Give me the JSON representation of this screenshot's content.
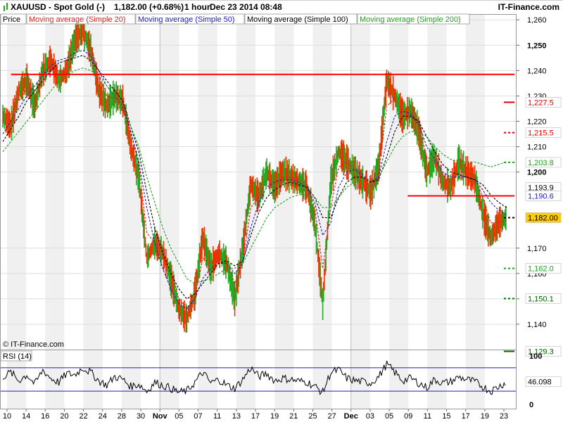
{
  "header": {
    "symbol": "XAUUSD - Spot Gold (-)",
    "price_change": "1,182.00 (+0.68%)",
    "timeframe": "1 hour",
    "datetime": "Dec 23 2014 08:48",
    "brand": "IT-Finance.com"
  },
  "legend": [
    {
      "label": "Price",
      "color": "#000000"
    },
    {
      "label": "Moving average (Simple 20)",
      "color": "#e02020"
    },
    {
      "label": "Moving average (Simple 50)",
      "color": "#2020c0"
    },
    {
      "label": "Moving average (Simple 100)",
      "color": "#000000"
    },
    {
      "label": "Moving average (Simple 200)",
      "color": "#20a020"
    }
  ],
  "copyright": "© IT-Finance.com",
  "rsi_label": "RSI (14)",
  "colors": {
    "up": "#22aa22",
    "down": "#ee3300",
    "resistance": "#ff0000",
    "last_price_bg": "#ffcc00"
  },
  "chart_data": [
    {
      "type": "line",
      "ylim": [
        1130,
        1262
      ],
      "y_ticks": [
        {
          "value": 1260,
          "label": "1,260",
          "bold": false
        },
        {
          "value": 1250,
          "label": "1,250",
          "bold": true
        },
        {
          "value": 1240,
          "label": "1,240",
          "bold": false
        },
        {
          "value": 1230,
          "label": "1,230",
          "bold": false
        },
        {
          "value": 1220,
          "label": "1,220",
          "bold": false
        },
        {
          "value": 1210,
          "label": "1,210",
          "bold": false
        },
        {
          "value": 1200,
          "label": "1,200",
          "bold": true
        },
        {
          "value": 1170,
          "label": "1,170",
          "bold": false
        },
        {
          "value": 1160,
          "label": "1,160",
          "bold": false
        },
        {
          "value": 1150,
          "label": "1,150",
          "bold": false
        },
        {
          "value": 1140,
          "label": "1,140",
          "bold": false
        }
      ],
      "x_ticks": [
        {
          "label": "10",
          "bold": false
        },
        {
          "label": "14",
          "bold": false
        },
        {
          "label": "16",
          "bold": false
        },
        {
          "label": "20",
          "bold": false
        },
        {
          "label": "22",
          "bold": false
        },
        {
          "label": "24",
          "bold": false
        },
        {
          "label": "28",
          "bold": false
        },
        {
          "label": "30",
          "bold": false
        },
        {
          "label": "Nov",
          "bold": true
        },
        {
          "label": "05",
          "bold": false
        },
        {
          "label": "07",
          "bold": false
        },
        {
          "label": "11",
          "bold": false
        },
        {
          "label": "13",
          "bold": false
        },
        {
          "label": "17",
          "bold": false
        },
        {
          "label": "19",
          "bold": false
        },
        {
          "label": "21",
          "bold": false
        },
        {
          "label": "25",
          "bold": false
        },
        {
          "label": "27",
          "bold": false
        },
        {
          "label": "Dec",
          "bold": true
        },
        {
          "label": "03",
          "bold": false
        },
        {
          "label": "05",
          "bold": false
        },
        {
          "label": "09",
          "bold": false
        },
        {
          "label": "11",
          "bold": false
        },
        {
          "label": "15",
          "bold": false
        },
        {
          "label": "17",
          "bold": false
        },
        {
          "label": "19",
          "bold": false
        },
        {
          "label": "23",
          "bold": false
        }
      ],
      "price_path": [
        1222,
        1218,
        1232,
        1236,
        1226,
        1240,
        1244,
        1236,
        1240,
        1252,
        1256,
        1248,
        1232,
        1226,
        1230,
        1228,
        1210,
        1198,
        1166,
        1172,
        1168,
        1158,
        1146,
        1142,
        1152,
        1174,
        1162,
        1168,
        1164,
        1150,
        1170,
        1195,
        1190,
        1200,
        1194,
        1200,
        1198,
        1196,
        1194,
        1180,
        1148,
        1196,
        1208,
        1204,
        1200,
        1196,
        1192,
        1202,
        1236,
        1230,
        1222,
        1224,
        1216,
        1200,
        1206,
        1196,
        1194,
        1204,
        1200,
        1197,
        1184,
        1174,
        1180,
        1182
      ],
      "series": [
        {
          "name": "Moving average (Simple 20)",
          "color": "#e02020",
          "values": [
            1225,
            1223,
            1228,
            1233,
            1232,
            1237,
            1241,
            1240,
            1239,
            1247,
            1252,
            1250,
            1238,
            1230,
            1229,
            1228,
            1216,
            1203,
            1176,
            1172,
            1169,
            1162,
            1150,
            1146,
            1150,
            1166,
            1164,
            1166,
            1165,
            1156,
            1164,
            1186,
            1190,
            1197,
            1196,
            1198,
            1198,
            1197,
            1195,
            1186,
            1162,
            1186,
            1202,
            1204,
            1201,
            1198,
            1194,
            1199,
            1226,
            1229,
            1224,
            1223,
            1218,
            1206,
            1204,
            1199,
            1196,
            1200,
            1200,
            1198,
            1190,
            1180,
            1180,
            1181
          ]
        },
        {
          "name": "Moving average (Simple 50)",
          "color": "#2020c0",
          "values": [
            1215,
            1220,
            1225,
            1230,
            1234,
            1238,
            1242,
            1244,
            1245,
            1247,
            1248,
            1246,
            1240,
            1234,
            1230,
            1226,
            1216,
            1204,
            1186,
            1172,
            1162,
            1154,
            1148,
            1146,
            1150,
            1158,
            1162,
            1164,
            1164,
            1160,
            1164,
            1178,
            1188,
            1194,
            1196,
            1197,
            1197,
            1196,
            1194,
            1188,
            1175,
            1180,
            1194,
            1200,
            1201,
            1199,
            1196,
            1198,
            1212,
            1222,
            1224,
            1223,
            1219,
            1210,
            1205,
            1200,
            1198,
            1198,
            1198,
            1197,
            1193,
            1188,
            1185,
            1183
          ]
        },
        {
          "name": "Moving average (Simple 100)",
          "color": "#000000",
          "values": [
            1212,
            1217,
            1222,
            1228,
            1232,
            1236,
            1240,
            1243,
            1244,
            1245,
            1246,
            1244,
            1240,
            1236,
            1232,
            1228,
            1218,
            1208,
            1192,
            1178,
            1168,
            1160,
            1154,
            1150,
            1152,
            1156,
            1160,
            1164,
            1165,
            1163,
            1165,
            1175,
            1184,
            1190,
            1193,
            1195,
            1196,
            1195,
            1194,
            1190,
            1182,
            1182,
            1190,
            1196,
            1198,
            1198,
            1196,
            1197,
            1206,
            1216,
            1222,
            1222,
            1220,
            1214,
            1208,
            1203,
            1200,
            1199,
            1198,
            1197,
            1195,
            1191,
            1188,
            1186
          ]
        },
        {
          "name": "Moving average (Simple 200)",
          "color": "#20a020",
          "values": [
            1208,
            1212,
            1216,
            1220,
            1224,
            1228,
            1232,
            1236,
            1238,
            1240,
            1241,
            1240,
            1238,
            1234,
            1230,
            1226,
            1218,
            1210,
            1198,
            1188,
            1178,
            1170,
            1164,
            1158,
            1156,
            1157,
            1158,
            1160,
            1162,
            1162,
            1164,
            1170,
            1176,
            1182,
            1186,
            1188,
            1190,
            1191,
            1191,
            1190,
            1186,
            1186,
            1190,
            1194,
            1196,
            1197,
            1197,
            1198,
            1204,
            1210,
            1214,
            1216,
            1216,
            1214,
            1210,
            1207,
            1205,
            1204,
            1204,
            1204,
            1203,
            1202,
            1203,
            1204
          ]
        }
      ],
      "horizontal_lines": [
        {
          "value": 1238.5,
          "color": "#ff0000",
          "start_fraction": 0.02,
          "end_fraction": 1.0
        },
        {
          "value": 1190.6,
          "color": "#ff0000",
          "start_fraction": 0.79,
          "end_fraction": 1.0
        }
      ],
      "price_labels": [
        {
          "value": 1227.5,
          "label": "1,227.5",
          "color": "#dd0000",
          "style": "solid"
        },
        {
          "value": 1215.5,
          "label": "1,215.5",
          "color": "#dd0000",
          "style": "dashed"
        },
        {
          "value": 1203.8,
          "label": "1,203.8",
          "color": "#20a020",
          "style": "dashed"
        },
        {
          "value": 1193.9,
          "label": "1,193.9",
          "color": "#000000",
          "style": "none"
        },
        {
          "value": 1190.6,
          "label": "1,190.6",
          "color": "#2020c0",
          "style": "none"
        },
        {
          "value": 1182.0,
          "label": "1,182.00",
          "color": "#000000",
          "style": "dashed",
          "highlight": true
        },
        {
          "value": 1162.0,
          "label": "1,162.0",
          "color": "#20a020",
          "style": "dashed"
        },
        {
          "value": 1150.1,
          "label": "1,150.1",
          "color": "#006600",
          "style": "dashed"
        },
        {
          "value": 1129.3,
          "label": "1,129.3",
          "color": "#006600",
          "style": "solid"
        }
      ]
    },
    {
      "type": "line",
      "name": "RSI (14)",
      "ylim": [
        0,
        100
      ],
      "y_ticks": [
        {
          "value": 100,
          "label": "100",
          "bold": true
        },
        {
          "value": 0,
          "label": "0",
          "bold": true
        }
      ],
      "levels": [
        70,
        30
      ],
      "last_value": "46.098",
      "values": [
        55,
        62,
        48,
        58,
        42,
        66,
        52,
        45,
        60,
        58,
        70,
        62,
        48,
        40,
        55,
        50,
        38,
        42,
        30,
        45,
        40,
        35,
        28,
        30,
        45,
        62,
        44,
        50,
        40,
        35,
        50,
        70,
        55,
        60,
        48,
        52,
        50,
        47,
        46,
        38,
        28,
        62,
        66,
        52,
        48,
        46,
        44,
        55,
        76,
        62,
        48,
        52,
        44,
        36,
        50,
        44,
        46,
        54,
        50,
        46,
        38,
        30,
        38,
        46
      ]
    }
  ]
}
